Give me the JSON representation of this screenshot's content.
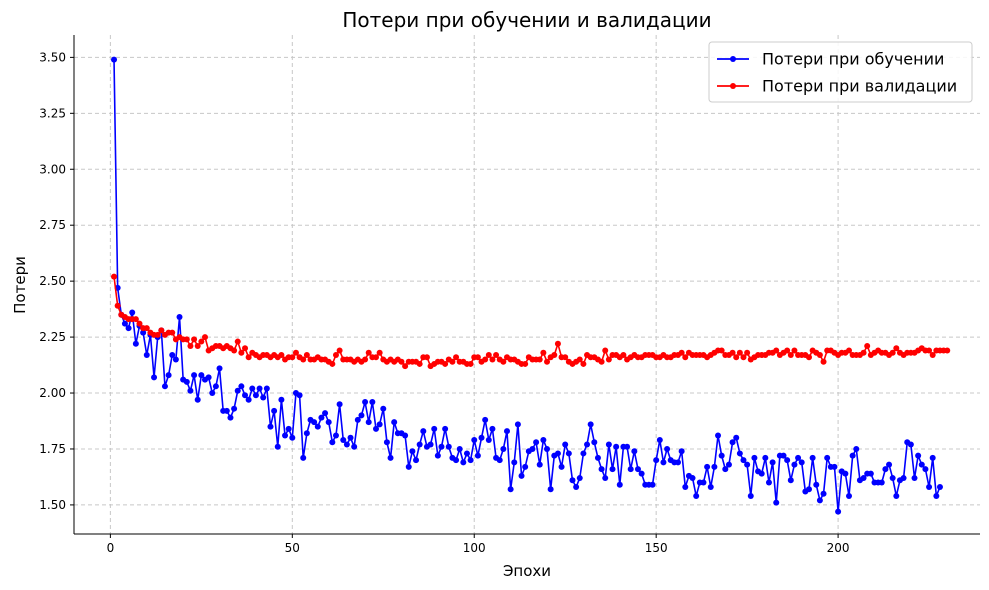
{
  "chart_data": {
    "type": "line",
    "title": "Потери при обучении и валидации",
    "xlabel": "Эпохи",
    "ylabel": "Потери",
    "xlim": [
      -10,
      239
    ],
    "ylim": [
      1.37,
      3.6
    ],
    "x_ticks": [
      0,
      50,
      100,
      150,
      200
    ],
    "y_ticks": [
      1.5,
      1.75,
      2.0,
      2.25,
      2.5,
      2.75,
      3.0,
      3.25,
      3.5
    ],
    "x_tick_labels": [
      "0",
      "50",
      "100",
      "150",
      "200"
    ],
    "y_tick_labels": [
      "1.50",
      "1.75",
      "2.00",
      "2.25",
      "2.50",
      "2.75",
      "3.00",
      "3.25",
      "3.50"
    ],
    "grid": true,
    "legend_position": "top-right",
    "colors": {
      "train": "#0000ff",
      "val": "#ff0000"
    },
    "series": [
      {
        "name": "Потери при обучении",
        "color": "#0000ff",
        "x_start": 1,
        "values": [
          3.49,
          2.47,
          2.35,
          2.31,
          2.29,
          2.36,
          2.22,
          2.3,
          2.27,
          2.17,
          2.26,
          2.07,
          2.25,
          2.28,
          2.03,
          2.08,
          2.17,
          2.15,
          2.34,
          2.06,
          2.05,
          2.01,
          2.08,
          1.97,
          2.08,
          2.06,
          2.07,
          2.0,
          2.03,
          2.11,
          1.92,
          1.92,
          1.89,
          1.93,
          2.01,
          2.03,
          1.99,
          1.97,
          2.02,
          1.99,
          2.02,
          1.98,
          2.02,
          1.85,
          1.92,
          1.76,
          1.97,
          1.81,
          1.84,
          1.8,
          2.0,
          1.99,
          1.71,
          1.82,
          1.88,
          1.87,
          1.85,
          1.89,
          1.91,
          1.87,
          1.78,
          1.81,
          1.95,
          1.79,
          1.77,
          1.8,
          1.76,
          1.88,
          1.9,
          1.96,
          1.87,
          1.96,
          1.84,
          1.86,
          1.93,
          1.78,
          1.71,
          1.87,
          1.82,
          1.82,
          1.81,
          1.67,
          1.74,
          1.7,
          1.77,
          1.83,
          1.76,
          1.77,
          1.84,
          1.72,
          1.76,
          1.84,
          1.76,
          1.71,
          1.7,
          1.75,
          1.69,
          1.73,
          1.7,
          1.79,
          1.72,
          1.8,
          1.88,
          1.79,
          1.84,
          1.71,
          1.7,
          1.75,
          1.83,
          1.57,
          1.69,
          1.86,
          1.63,
          1.67,
          1.74,
          1.75,
          1.78,
          1.68,
          1.79,
          1.75,
          1.57,
          1.72,
          1.73,
          1.67,
          1.77,
          1.73,
          1.61,
          1.58,
          1.62,
          1.73,
          1.77,
          1.86,
          1.78,
          1.71,
          1.66,
          1.62,
          1.77,
          1.66,
          1.76,
          1.59,
          1.76,
          1.76,
          1.66,
          1.74,
          1.66,
          1.64,
          1.59,
          1.59,
          1.59,
          1.7,
          1.79,
          1.69,
          1.75,
          1.7,
          1.69,
          1.69,
          1.74,
          1.58,
          1.63,
          1.62,
          1.54,
          1.6,
          1.6,
          1.67,
          1.58,
          1.67,
          1.81,
          1.72,
          1.66,
          1.68,
          1.78,
          1.8,
          1.73,
          1.7,
          1.68,
          1.54,
          1.71,
          1.65,
          1.64,
          1.71,
          1.6,
          1.69,
          1.51,
          1.72,
          1.72,
          1.7,
          1.61,
          1.68,
          1.71,
          1.69,
          1.56,
          1.57,
          1.71,
          1.59,
          1.52,
          1.55,
          1.71,
          1.67,
          1.67,
          1.47,
          1.65,
          1.64,
          1.54,
          1.72,
          1.75,
          1.61,
          1.62,
          1.64,
          1.64,
          1.6,
          1.6,
          1.6,
          1.66,
          1.68,
          1.62,
          1.54,
          1.61,
          1.62,
          1.78,
          1.77,
          1.62,
          1.72,
          1.68,
          1.66,
          1.58,
          1.71,
          1.54,
          1.58
        ]
      },
      {
        "name": "Потери при валидации",
        "color": "#ff0000",
        "x_start": 1,
        "values": [
          2.52,
          2.39,
          2.35,
          2.34,
          2.33,
          2.33,
          2.33,
          2.31,
          2.29,
          2.29,
          2.27,
          2.26,
          2.26,
          2.28,
          2.26,
          2.27,
          2.27,
          2.24,
          2.25,
          2.24,
          2.24,
          2.21,
          2.24,
          2.21,
          2.23,
          2.25,
          2.19,
          2.2,
          2.21,
          2.21,
          2.2,
          2.21,
          2.2,
          2.19,
          2.23,
          2.18,
          2.2,
          2.16,
          2.18,
          2.17,
          2.16,
          2.17,
          2.17,
          2.16,
          2.17,
          2.16,
          2.17,
          2.15,
          2.16,
          2.16,
          2.18,
          2.16,
          2.15,
          2.17,
          2.15,
          2.15,
          2.16,
          2.15,
          2.15,
          2.14,
          2.13,
          2.17,
          2.19,
          2.15,
          2.15,
          2.15,
          2.14,
          2.15,
          2.14,
          2.15,
          2.18,
          2.16,
          2.16,
          2.18,
          2.15,
          2.14,
          2.15,
          2.14,
          2.15,
          2.14,
          2.12,
          2.14,
          2.14,
          2.14,
          2.13,
          2.16,
          2.16,
          2.12,
          2.13,
          2.14,
          2.14,
          2.13,
          2.15,
          2.14,
          2.16,
          2.14,
          2.14,
          2.13,
          2.13,
          2.16,
          2.16,
          2.14,
          2.15,
          2.17,
          2.15,
          2.17,
          2.15,
          2.14,
          2.16,
          2.15,
          2.15,
          2.14,
          2.13,
          2.13,
          2.16,
          2.15,
          2.15,
          2.15,
          2.18,
          2.14,
          2.16,
          2.17,
          2.22,
          2.16,
          2.16,
          2.14,
          2.13,
          2.14,
          2.15,
          2.13,
          2.17,
          2.16,
          2.16,
          2.15,
          2.14,
          2.19,
          2.15,
          2.17,
          2.17,
          2.16,
          2.17,
          2.15,
          2.16,
          2.17,
          2.16,
          2.16,
          2.17,
          2.17,
          2.17,
          2.16,
          2.16,
          2.17,
          2.16,
          2.16,
          2.17,
          2.17,
          2.18,
          2.16,
          2.18,
          2.17,
          2.17,
          2.17,
          2.17,
          2.16,
          2.17,
          2.18,
          2.19,
          2.19,
          2.17,
          2.17,
          2.18,
          2.16,
          2.18,
          2.16,
          2.18,
          2.15,
          2.16,
          2.17,
          2.17,
          2.17,
          2.18,
          2.18,
          2.19,
          2.17,
          2.18,
          2.19,
          2.17,
          2.19,
          2.17,
          2.17,
          2.17,
          2.16,
          2.19,
          2.18,
          2.17,
          2.14,
          2.19,
          2.19,
          2.18,
          2.17,
          2.18,
          2.18,
          2.19,
          2.17,
          2.17,
          2.17,
          2.18,
          2.21,
          2.17,
          2.18,
          2.19,
          2.18,
          2.18,
          2.17,
          2.18,
          2.2,
          2.18,
          2.17,
          2.18,
          2.18,
          2.18,
          2.19,
          2.2,
          2.19,
          2.19,
          2.17,
          2.19,
          2.19,
          2.19,
          2.19
        ]
      }
    ]
  }
}
